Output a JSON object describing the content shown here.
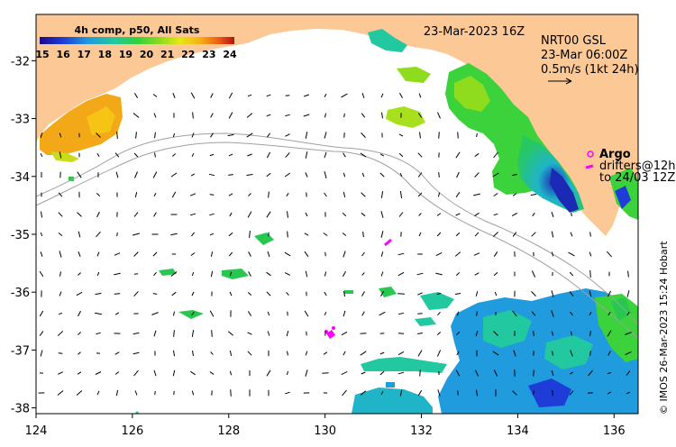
{
  "map": {
    "date_label": "23-Mar-2023 16Z",
    "product": "NRT00 GSL",
    "product_time": "23-Mar 06:00Z",
    "vector_scale": "0.5m/s (1kt 24h)",
    "argo_label": "Argo",
    "drifters_line1": "drifters@12h",
    "drifters_line2": "to 24/03 12Z",
    "credit": "© IMOS 26-Mar-2023 15:24 Hobart",
    "x_ticks": [
      "124",
      "126",
      "128",
      "130",
      "132",
      "134",
      "136"
    ],
    "y_ticks": [
      "-32",
      "-33",
      "-34",
      "-35",
      "-36",
      "-37",
      "-38"
    ],
    "lon_range": [
      124,
      136.5
    ],
    "lat_range": [
      -38.1,
      -31.2
    ]
  },
  "colorbar": {
    "title": "4h comp, p50, All Sats",
    "ticks": [
      "15",
      "16",
      "17",
      "18",
      "19",
      "20",
      "21",
      "22",
      "23",
      "24"
    ],
    "range": [
      15,
      24
    ]
  },
  "colors": {
    "land": "#fcc896",
    "frame": "#000000",
    "isobath": "#a0a0a0",
    "argo": "#ff00ff"
  }
}
